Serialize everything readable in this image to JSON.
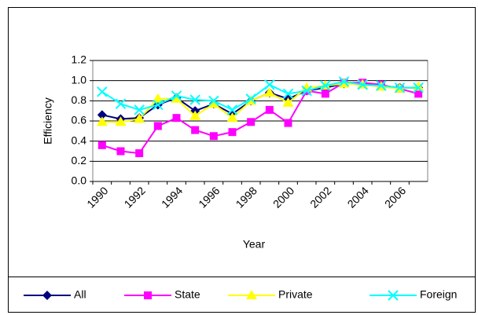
{
  "chart_data": {
    "type": "line",
    "x_label": "Year",
    "y_label": "Efficiency",
    "categories": [
      "1990",
      null,
      "1992",
      null,
      "1994",
      null,
      "1996",
      null,
      "1998",
      null,
      "2000",
      null,
      "2002",
      null,
      "2004",
      null,
      "2006",
      null
    ],
    "ylim": [
      0,
      1.2
    ],
    "yticks": [
      {
        "value": 0,
        "label": "0.0"
      },
      0.2,
      0.4,
      0.6,
      0.8,
      {
        "value": 1,
        "label": "1.0"
      },
      1.2
    ],
    "grid": true,
    "legend": "bottom",
    "series": [
      {
        "name": "All",
        "color": "#000080",
        "marker": "diamond",
        "values": [
          0.66,
          0.62,
          0.63,
          0.76,
          0.83,
          0.7,
          0.77,
          0.67,
          0.8,
          0.88,
          0.82,
          0.9,
          0.93,
          0.97,
          0.97,
          0.95,
          0.93,
          0.93
        ]
      },
      {
        "name": "State",
        "color": "#ff00ff",
        "marker": "square",
        "values": [
          0.36,
          0.3,
          0.28,
          0.55,
          0.63,
          0.51,
          0.45,
          0.49,
          0.59,
          0.71,
          0.58,
          0.9,
          0.87,
          0.98,
          0.98,
          0.96,
          0.92,
          0.87
        ]
      },
      {
        "name": "Private",
        "color": "#ffff00",
        "marker": "triangle",
        "values": [
          0.59,
          0.59,
          0.62,
          0.82,
          0.82,
          0.65,
          0.77,
          0.63,
          0.8,
          0.88,
          0.78,
          0.93,
          0.95,
          0.97,
          0.96,
          0.94,
          0.92,
          0.94
        ]
      },
      {
        "name": "Foreign",
        "color": "#00ffff",
        "marker": "x",
        "values": [
          0.89,
          0.77,
          0.71,
          0.76,
          0.85,
          0.81,
          0.8,
          0.71,
          0.82,
          0.96,
          0.87,
          0.9,
          0.95,
          0.99,
          0.96,
          0.95,
          0.93,
          0.93
        ]
      }
    ]
  }
}
